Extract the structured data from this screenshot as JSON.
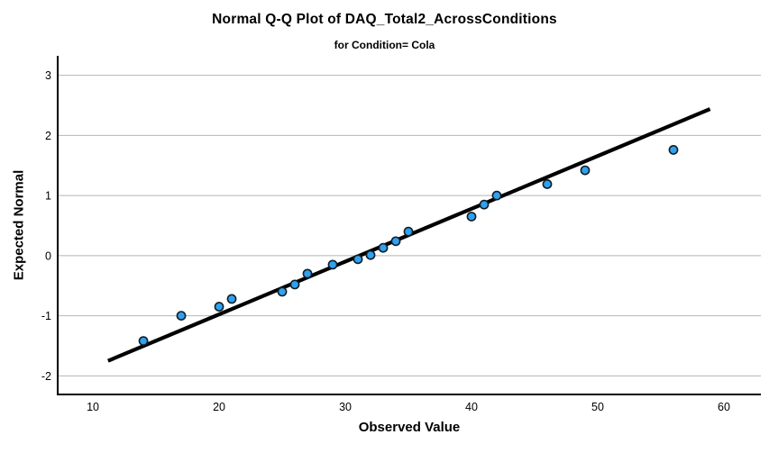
{
  "chart_data": {
    "type": "scatter",
    "title": "Normal Q-Q Plot of DAQ_Total2_AcrossConditions",
    "subtitle": "for Condition= Cola",
    "xlabel": "Observed Value",
    "ylabel": "Expected Normal",
    "xlim": [
      7.21,
      62.93
    ],
    "ylim": [
      -2.31,
      3.31
    ],
    "x_ticks": [
      10,
      20,
      30,
      40,
      50,
      60
    ],
    "y_ticks": [
      -2,
      -1,
      0,
      1,
      2,
      3
    ],
    "grid": "horizontal-only",
    "legend": "none",
    "points": [
      {
        "x": 14,
        "y": -1.42
      },
      {
        "x": 17,
        "y": -1.0
      },
      {
        "x": 20,
        "y": -0.85
      },
      {
        "x": 21,
        "y": -0.72
      },
      {
        "x": 25,
        "y": -0.6
      },
      {
        "x": 26,
        "y": -0.48
      },
      {
        "x": 27,
        "y": -0.3
      },
      {
        "x": 29,
        "y": -0.15
      },
      {
        "x": 31,
        "y": -0.06
      },
      {
        "x": 32,
        "y": 0.01
      },
      {
        "x": 33,
        "y": 0.13
      },
      {
        "x": 34,
        "y": 0.24
      },
      {
        "x": 35,
        "y": 0.4
      },
      {
        "x": 40,
        "y": 0.65
      },
      {
        "x": 41,
        "y": 0.85
      },
      {
        "x": 42,
        "y": 1.0
      },
      {
        "x": 46,
        "y": 1.19
      },
      {
        "x": 49,
        "y": 1.42
      },
      {
        "x": 56,
        "y": 1.76
      }
    ],
    "reference_line": {
      "x1": 11.2,
      "y1": -1.75,
      "x2": 58.9,
      "y2": 2.44
    },
    "colors": {
      "point_fill": "#31a1ef",
      "point_stroke": "#101d26",
      "reference_line": "#000000",
      "grid": "#b5b5b5",
      "axis": "#000000",
      "text": "#000000",
      "background": "#ffffff"
    }
  }
}
